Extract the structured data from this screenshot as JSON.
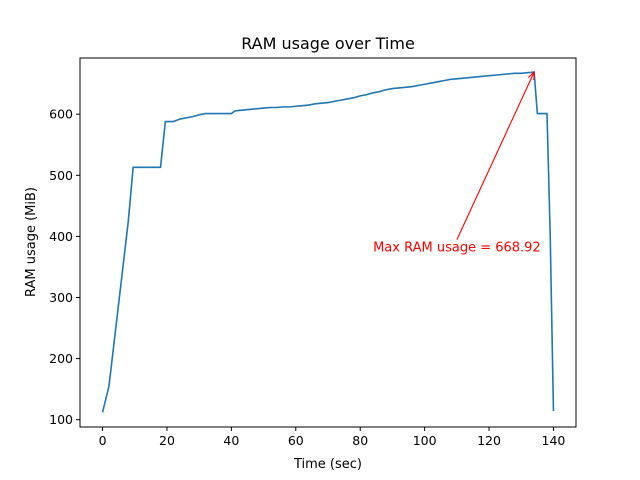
{
  "chart_data": {
    "type": "line",
    "title": "RAM usage over Time",
    "xlabel": "Time (sec)",
    "ylabel": "RAM usage (MiB)",
    "xlim": [
      -7,
      147
    ],
    "ylim": [
      88,
      692
    ],
    "xticks": [
      0,
      20,
      40,
      60,
      80,
      100,
      120,
      140
    ],
    "yticks": [
      100,
      200,
      300,
      400,
      500,
      600
    ],
    "grid": false,
    "line_color": "#1f77b4",
    "annotation_color": "#ff0000",
    "series": [
      {
        "x": [
          0,
          2,
          4,
          6,
          8,
          9.5,
          10,
          12,
          14,
          16,
          18,
          19.5,
          20,
          22,
          24,
          26,
          28,
          30,
          32,
          34,
          36,
          38,
          40,
          41,
          42,
          44,
          46,
          48,
          50,
          52,
          54,
          56,
          58,
          60,
          62,
          64,
          66,
          68,
          70,
          72,
          74,
          76,
          78,
          80,
          82,
          84,
          86,
          88,
          90,
          92,
          94,
          96,
          98,
          100,
          102,
          104,
          106,
          108,
          110,
          112,
          114,
          116,
          118,
          120,
          122,
          124,
          126,
          128,
          130,
          132,
          134,
          135,
          136,
          138,
          139,
          140
        ],
        "values": [
          112,
          155,
          245,
          335,
          425,
          513,
          513,
          513,
          513,
          513,
          513,
          588,
          588,
          588,
          592,
          594,
          596,
          599,
          601,
          601,
          601,
          601,
          601,
          605,
          606,
          607,
          608,
          609,
          610,
          611,
          611,
          612,
          612,
          613,
          614,
          615,
          617,
          618,
          619,
          621,
          623,
          625,
          627,
          630,
          632,
          635,
          637,
          640,
          642,
          643,
          644,
          645,
          647,
          649,
          651,
          653,
          655,
          657,
          658,
          659,
          660,
          661,
          662,
          663,
          664,
          665,
          666,
          667,
          667,
          668,
          668.92,
          601,
          601,
          601,
          400,
          114
        ]
      }
    ],
    "annotation": {
      "text": "Max RAM usage = 668.92",
      "x": 84,
      "y": 375,
      "arrow_to": [
        134,
        668.92
      ]
    }
  }
}
